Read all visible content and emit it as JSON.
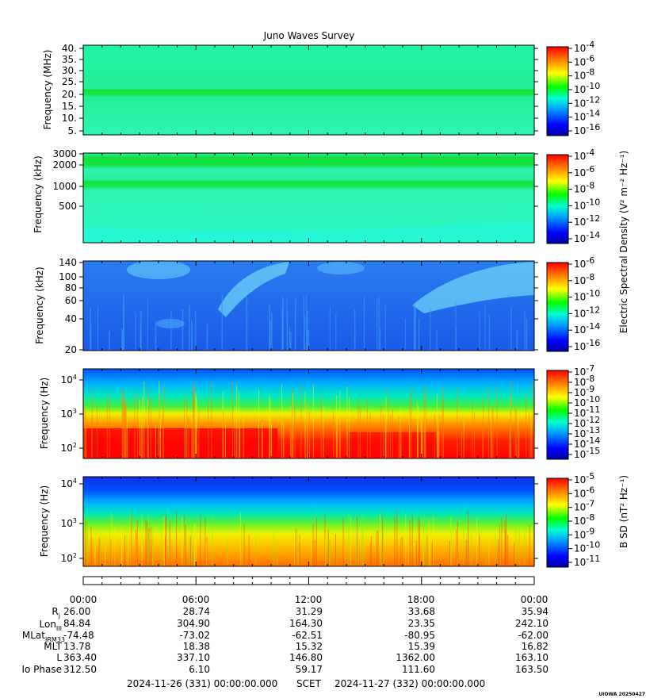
{
  "title": "Juno Waves Survey",
  "stamp": "UIOWA 20250427",
  "colorbar_labels": {
    "electric": "Electric Spectral Density (V² m⁻² Hz⁻¹)",
    "magnetic": "B SD (nT² Hz⁻¹)"
  },
  "chart_data": [
    {
      "type": "heatmap",
      "name": "panel-mhz",
      "ylabel": "Frequency (MHz)",
      "yticks": [
        "40.",
        "35.",
        "30.",
        "25.",
        "20.",
        "15.",
        "10.",
        "5."
      ],
      "ylim": [
        4,
        41
      ],
      "colorbar": {
        "ticks": [
          "-4",
          "-6",
          "-8",
          "-10",
          "-12",
          "-14",
          "-16"
        ]
      }
    },
    {
      "type": "heatmap",
      "name": "panel-khz-high",
      "ylabel": "Frequency (kHz)",
      "yticks": [
        "3000",
        "2000",
        "1000",
        "500"
      ],
      "ylim": [
        150,
        3000
      ],
      "colorbar": {
        "ticks": [
          "-4",
          "-6",
          "-8",
          "-10",
          "-12",
          "-14"
        ]
      }
    },
    {
      "type": "heatmap",
      "name": "panel-khz-low",
      "ylabel": "Frequency (kHz)",
      "yticks": [
        "140",
        "100",
        "80",
        "60",
        "40",
        "20"
      ],
      "ylim": [
        20,
        140
      ],
      "colorbar": {
        "ticks": [
          "-6",
          "-8",
          "-10",
          "-12",
          "-14",
          "-16"
        ]
      }
    },
    {
      "type": "heatmap",
      "name": "panel-hz-e",
      "ylabel": "Frequency (Hz)",
      "yticks": [
        {
          "base": "10",
          "exp": "4"
        },
        {
          "base": "10",
          "exp": "3"
        },
        {
          "base": "10",
          "exp": "2"
        }
      ],
      "ylim": [
        50,
        20000
      ],
      "colorbar": {
        "ticks": [
          "-7",
          "-8",
          "-9",
          "-10",
          "-11",
          "-12",
          "-13",
          "-14",
          "-15"
        ]
      }
    },
    {
      "type": "heatmap",
      "name": "panel-hz-b",
      "ylabel": "Frequency (Hz)",
      "yticks": [
        {
          "base": "10",
          "exp": "4"
        },
        {
          "base": "10",
          "exp": "3"
        },
        {
          "base": "10",
          "exp": "2"
        }
      ],
      "ylim": [
        50,
        20000
      ],
      "colorbar": {
        "ticks": [
          "-5",
          "-6",
          "-7",
          "-8",
          "-9",
          "-10",
          "-11"
        ]
      }
    }
  ],
  "ephemeris": {
    "times": [
      "00:00",
      "06:00",
      "12:00",
      "18:00",
      "00:00"
    ],
    "rows": [
      {
        "label": "Rj",
        "values": [
          "26.00",
          "28.74",
          "31.29",
          "33.68",
          "35.94"
        ]
      },
      {
        "label": "LonIII",
        "values": [
          "84.84",
          "304.90",
          "164.30",
          "23.35",
          "242.10"
        ]
      },
      {
        "label": "MLatJRM33",
        "values": [
          "-74.48",
          "-73.02",
          "-62.51",
          "-80.95",
          "-62.00"
        ]
      },
      {
        "label": "MLT",
        "values": [
          "13.78",
          "18.38",
          "15.32",
          "15.39",
          "16.82"
        ]
      },
      {
        "label": "L",
        "values": [
          "363.40",
          "337.10",
          "146.80",
          "1362.00",
          "163.10"
        ]
      },
      {
        "label": "Io Phase",
        "values": [
          "312.50",
          "6.10",
          "59.17",
          "111.60",
          "163.50"
        ]
      }
    ],
    "row_labels": {
      "rj_base": "R",
      "rj_sub": "j",
      "lon_base": "Lon",
      "lon_sub": "III",
      "mlat_base": "MLat",
      "mlat_sub": "JRM33",
      "mlt": "MLT",
      "l": "L",
      "io": "Io Phase"
    }
  },
  "footer": {
    "start": "2024-11-26 (331) 00:00:00.000",
    "scet": "SCET",
    "end": "2024-11-27 (332) 00:00:00.000"
  }
}
